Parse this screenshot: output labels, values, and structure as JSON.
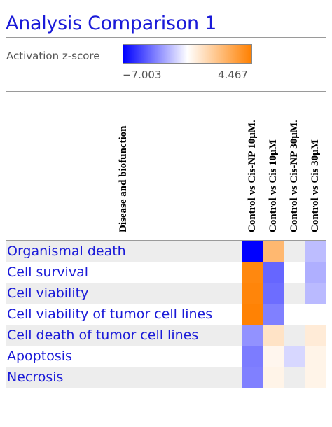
{
  "title": "Analysis Comparison 1",
  "legend": {
    "label": "Activation z-score",
    "min_label": "−7.003",
    "max_label": "4.467",
    "min": -7.003,
    "max": 4.467,
    "colors": {
      "negative": "#0000ff",
      "zero": "#ffffff",
      "positive": "#ff8000"
    }
  },
  "chart_data": {
    "type": "heatmap",
    "title": "Analysis Comparison 1",
    "row_header": "Disease and biofunction",
    "columns": [
      "Control vs Cis-NP 10μM.",
      "Control vs Cis 10μM",
      "Control vs Cis-NP 30μM.",
      "Control vs Cis 30μM"
    ],
    "rows": [
      "Organismal death",
      "Cell survival",
      "Cell viability",
      "Cell viability of tumor cell lines",
      "Cell death of tumor cell lines",
      "Apoptosis",
      "Necrosis"
    ],
    "values": [
      [
        -7.0,
        2.5,
        null,
        -1.8
      ],
      [
        4.2,
        -4.2,
        null,
        -2.2
      ],
      [
        4.3,
        -4.0,
        null,
        -1.9
      ],
      [
        4.4,
        -3.5,
        null,
        null
      ],
      [
        -3.0,
        1.0,
        null,
        0.7
      ],
      [
        -3.6,
        0.3,
        -1.1,
        0.4
      ],
      [
        -3.5,
        0.4,
        null,
        0.4
      ]
    ],
    "colorscale": {
      "min": -7.003,
      "max": 4.467
    }
  }
}
